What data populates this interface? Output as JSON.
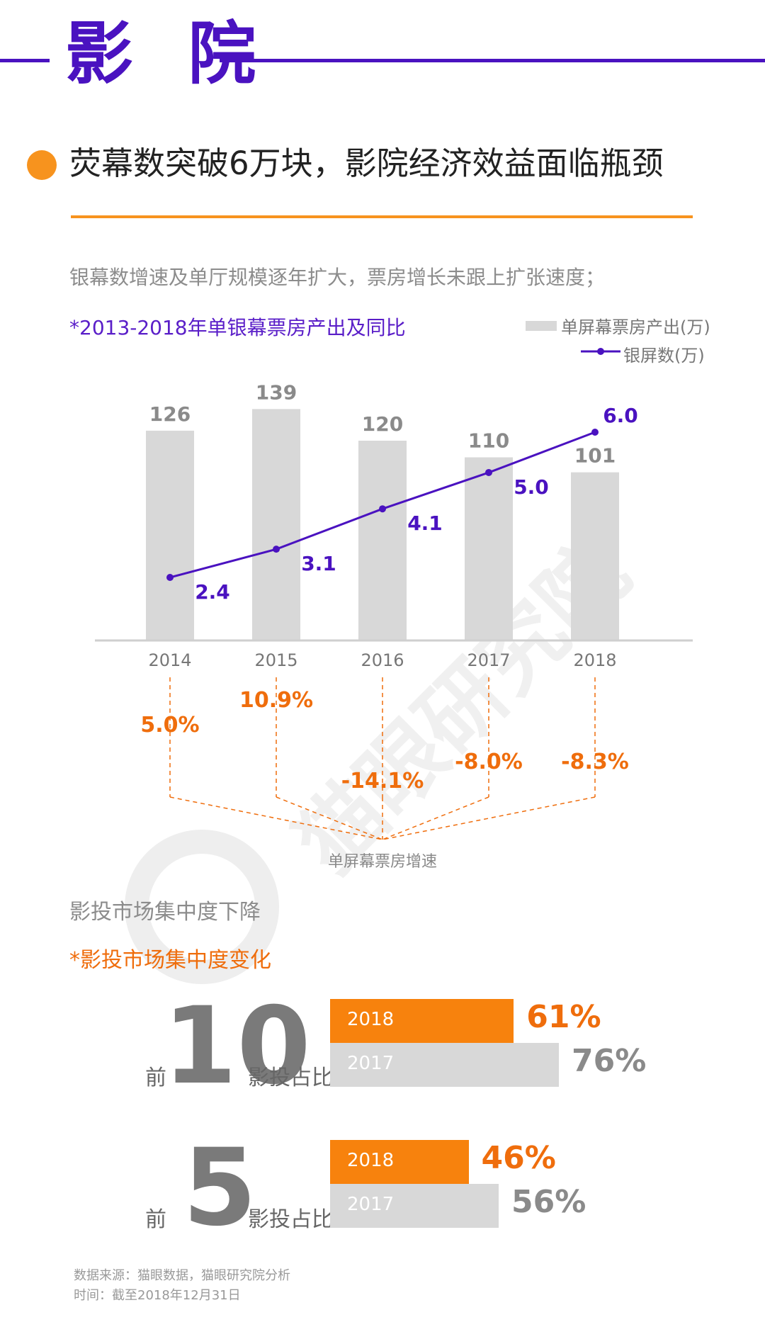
{
  "header": {
    "title": "影 院"
  },
  "headline": {
    "text": "荧幕数突破6万块，影院经济效益面临瓶颈"
  },
  "intro": {
    "text": "银幕数增速及单厅规模逐年扩大，票房增长未跟上扩张速度；"
  },
  "watermark": {
    "text": "猫眼研究院"
  },
  "colors": {
    "purple": "#4a12c0",
    "orange": "#f7931e",
    "bar": "#d8d8d8",
    "growth": "#ef6d0c"
  },
  "chart_data": [
    {
      "type": "bar+line",
      "title": "*2013-2018年单银幕票房产出及同比",
      "categories": [
        "2014",
        "2015",
        "2016",
        "2017",
        "2018"
      ],
      "series": [
        {
          "name": "单屏幕票房产出(万)",
          "kind": "bar",
          "values": [
            126,
            139,
            120,
            110,
            101
          ],
          "labels": [
            "126",
            "139",
            "120",
            "110",
            "101"
          ]
        },
        {
          "name": "银屏数(万)",
          "kind": "line",
          "values": [
            2.4,
            3.1,
            4.1,
            5.0,
            6.0
          ],
          "labels": [
            "2.4",
            "3.1",
            "4.1",
            "5.0",
            "6.0"
          ]
        }
      ],
      "growth": {
        "name": "单屏幕票房增速",
        "values": [
          5.0,
          10.9,
          -14.1,
          -8.0,
          -8.3
        ],
        "labels": [
          "5.0%",
          "10.9%",
          "-14.1%",
          "-8.0%",
          "-8.3%"
        ]
      },
      "ylim_bar": [
        0,
        145
      ],
      "ylim_line": [
        0,
        7
      ]
    },
    {
      "type": "bar",
      "orientation": "horizontal",
      "title": "*影投市场集中度变化",
      "groups": [
        {
          "rank_prefix": "前",
          "rank_number": "10",
          "label": "影投占比",
          "bars": [
            {
              "year": "2018",
              "value": 61,
              "label": "61%"
            },
            {
              "year": "2017",
              "value": 76,
              "label": "76%"
            }
          ]
        },
        {
          "rank_prefix": "前",
          "rank_number": "5",
          "label": "影投占比",
          "bars": [
            {
              "year": "2018",
              "value": 46,
              "label": "46%"
            },
            {
              "year": "2017",
              "value": 56,
              "label": "56%"
            }
          ]
        }
      ],
      "xlim": [
        0,
        100
      ]
    }
  ],
  "section2": {
    "title": "影投市场集中度下降"
  },
  "footer": {
    "source": "数据来源：猫眼数据，猫眼研究院分析",
    "time": "时间：截至2018年12月31日"
  }
}
